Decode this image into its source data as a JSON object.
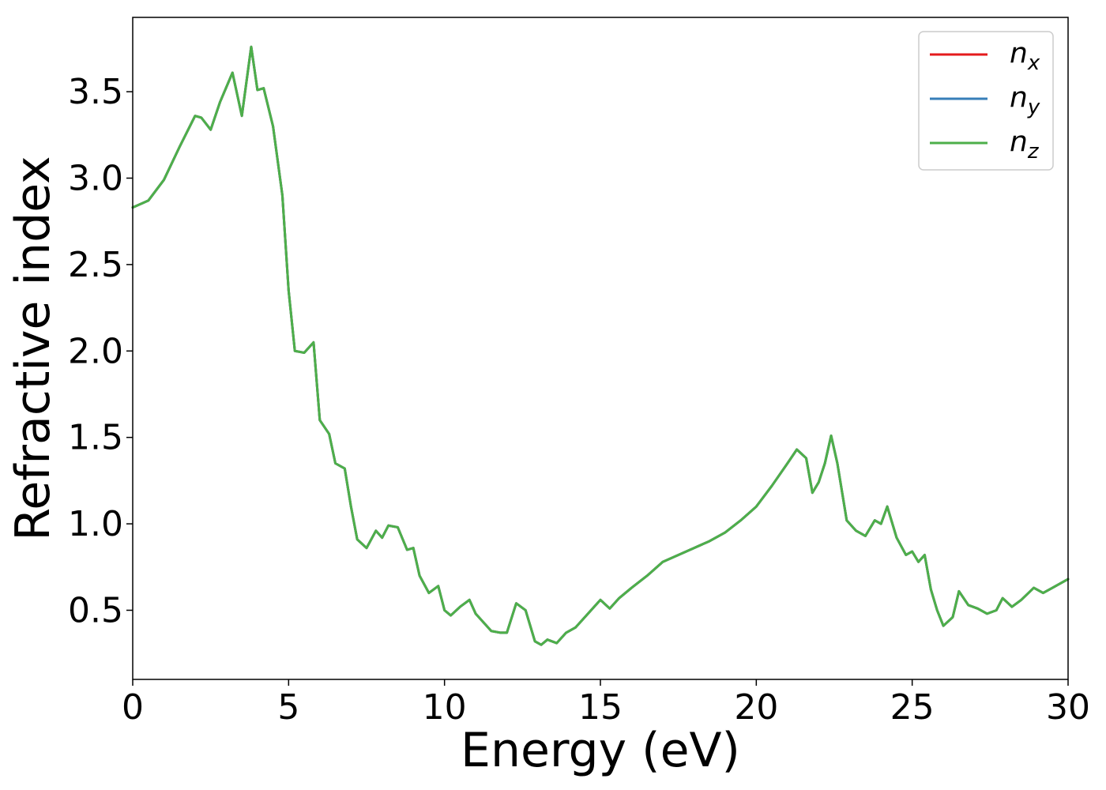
{
  "chart_data": {
    "type": "line",
    "title": "",
    "xlabel": "Energy (eV)",
    "ylabel": "Refractive index",
    "xlim": [
      0,
      30
    ],
    "ylim": [
      0.1,
      3.93
    ],
    "xticks": [
      0,
      5,
      10,
      15,
      20,
      25,
      30
    ],
    "xtick_labels": [
      "0",
      "5",
      "10",
      "15",
      "20",
      "25",
      "30"
    ],
    "yticks": [
      0.5,
      1.0,
      1.5,
      2.0,
      2.5,
      3.0,
      3.5
    ],
    "ytick_labels": [
      "0.5",
      "1.0",
      "1.5",
      "2.0",
      "2.5",
      "3.0",
      "3.5"
    ],
    "grid": false,
    "legend_position": "top-right",
    "x": [
      0,
      0.5,
      1,
      1.5,
      2,
      2.2,
      2.5,
      2.8,
      3.2,
      3.5,
      3.8,
      4,
      4.2,
      4.5,
      4.8,
      5,
      5.2,
      5.5,
      5.8,
      6,
      6.3,
      6.5,
      6.8,
      7,
      7.2,
      7.5,
      7.8,
      8,
      8.2,
      8.5,
      8.8,
      9,
      9.2,
      9.5,
      9.8,
      10,
      10.2,
      10.5,
      10.8,
      11,
      11.2,
      11.5,
      11.8,
      12,
      12.3,
      12.6,
      12.9,
      13.1,
      13.3,
      13.6,
      13.9,
      14.2,
      14.6,
      15,
      15.3,
      15.6,
      16,
      16.5,
      17,
      17.5,
      18,
      18.5,
      19,
      19.5,
      20,
      20.5,
      21,
      21.3,
      21.6,
      21.8,
      22,
      22.2,
      22.4,
      22.6,
      22.9,
      23.2,
      23.5,
      23.8,
      24,
      24.2,
      24.5,
      24.8,
      25,
      25.2,
      25.4,
      25.6,
      25.8,
      26,
      26.3,
      26.5,
      26.8,
      27.1,
      27.4,
      27.7,
      27.9,
      28.2,
      28.5,
      28.9,
      29.2,
      29.5,
      29.8,
      30
    ],
    "series": [
      {
        "name": "nx",
        "color": "#e41a1c",
        "values": [
          2.83,
          2.87,
          2.99,
          3.18,
          3.36,
          3.35,
          3.28,
          3.44,
          3.61,
          3.36,
          3.76,
          3.51,
          3.52,
          3.3,
          2.9,
          2.35,
          2.0,
          1.99,
          2.05,
          1.6,
          1.52,
          1.35,
          1.32,
          1.1,
          0.91,
          0.86,
          0.96,
          0.92,
          0.99,
          0.98,
          0.85,
          0.86,
          0.7,
          0.6,
          0.64,
          0.5,
          0.47,
          0.52,
          0.56,
          0.48,
          0.44,
          0.38,
          0.37,
          0.37,
          0.54,
          0.5,
          0.32,
          0.3,
          0.33,
          0.31,
          0.37,
          0.4,
          0.48,
          0.56,
          0.51,
          0.57,
          0.63,
          0.7,
          0.78,
          0.82,
          0.86,
          0.9,
          0.95,
          1.02,
          1.1,
          1.22,
          1.35,
          1.43,
          1.38,
          1.18,
          1.24,
          1.35,
          1.51,
          1.35,
          1.02,
          0.96,
          0.93,
          1.02,
          1.0,
          1.1,
          0.92,
          0.82,
          0.84,
          0.78,
          0.82,
          0.62,
          0.5,
          0.41,
          0.46,
          0.61,
          0.53,
          0.51,
          0.48,
          0.5,
          0.57,
          0.52,
          0.56,
          0.63,
          0.6,
          0.63,
          0.66,
          0.68
        ]
      },
      {
        "name": "ny",
        "color": "#377eb8",
        "values": [
          2.83,
          2.87,
          2.99,
          3.18,
          3.36,
          3.35,
          3.28,
          3.44,
          3.61,
          3.36,
          3.76,
          3.51,
          3.52,
          3.3,
          2.9,
          2.35,
          2.0,
          1.99,
          2.05,
          1.6,
          1.52,
          1.35,
          1.32,
          1.1,
          0.91,
          0.86,
          0.96,
          0.92,
          0.99,
          0.98,
          0.85,
          0.86,
          0.7,
          0.6,
          0.64,
          0.5,
          0.47,
          0.52,
          0.56,
          0.48,
          0.44,
          0.38,
          0.37,
          0.37,
          0.54,
          0.5,
          0.32,
          0.3,
          0.33,
          0.31,
          0.37,
          0.4,
          0.48,
          0.56,
          0.51,
          0.57,
          0.63,
          0.7,
          0.78,
          0.82,
          0.86,
          0.9,
          0.95,
          1.02,
          1.1,
          1.22,
          1.35,
          1.43,
          1.38,
          1.18,
          1.24,
          1.35,
          1.51,
          1.35,
          1.02,
          0.96,
          0.93,
          1.02,
          1.0,
          1.1,
          0.92,
          0.82,
          0.84,
          0.78,
          0.82,
          0.62,
          0.5,
          0.41,
          0.46,
          0.61,
          0.53,
          0.51,
          0.48,
          0.5,
          0.57,
          0.52,
          0.56,
          0.63,
          0.6,
          0.63,
          0.66,
          0.68
        ]
      },
      {
        "name": "nz",
        "color": "#4daf4a",
        "values": [
          2.83,
          2.87,
          2.99,
          3.18,
          3.36,
          3.35,
          3.28,
          3.44,
          3.61,
          3.36,
          3.76,
          3.51,
          3.52,
          3.3,
          2.9,
          2.35,
          2.0,
          1.99,
          2.05,
          1.6,
          1.52,
          1.35,
          1.32,
          1.1,
          0.91,
          0.86,
          0.96,
          0.92,
          0.99,
          0.98,
          0.85,
          0.86,
          0.7,
          0.6,
          0.64,
          0.5,
          0.47,
          0.52,
          0.56,
          0.48,
          0.44,
          0.38,
          0.37,
          0.37,
          0.54,
          0.5,
          0.32,
          0.3,
          0.33,
          0.31,
          0.37,
          0.4,
          0.48,
          0.56,
          0.51,
          0.57,
          0.63,
          0.7,
          0.78,
          0.82,
          0.86,
          0.9,
          0.95,
          1.02,
          1.1,
          1.22,
          1.35,
          1.43,
          1.38,
          1.18,
          1.24,
          1.35,
          1.51,
          1.35,
          1.02,
          0.96,
          0.93,
          1.02,
          1.0,
          1.1,
          0.92,
          0.82,
          0.84,
          0.78,
          0.82,
          0.62,
          0.5,
          0.41,
          0.46,
          0.61,
          0.53,
          0.51,
          0.48,
          0.5,
          0.57,
          0.52,
          0.56,
          0.63,
          0.6,
          0.63,
          0.66,
          0.68
        ]
      }
    ],
    "legend": [
      {
        "base": "n",
        "sub": "x"
      },
      {
        "base": "n",
        "sub": "y"
      },
      {
        "base": "n",
        "sub": "z"
      }
    ]
  }
}
